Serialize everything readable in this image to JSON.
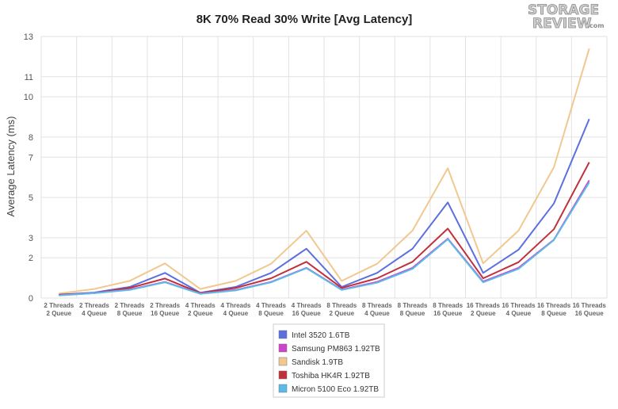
{
  "chart_data": {
    "type": "line",
    "title": "8K 70% Read 30% Write [Avg Latency]",
    "xlabel": "",
    "ylabel": "Average Latency (ms)",
    "yticks": [
      0,
      2,
      3,
      5,
      7,
      8,
      10,
      11,
      13
    ],
    "ylim": [
      0,
      13
    ],
    "grid": true,
    "legend_position": "bottom",
    "categories": [
      [
        "2 Threads",
        "2 Queue"
      ],
      [
        "2 Threads",
        "4 Queue"
      ],
      [
        "2 Threads",
        "8 Queue"
      ],
      [
        "2 Threads",
        "16 Queue"
      ],
      [
        "4 Threads",
        "2 Queue"
      ],
      [
        "4 Threads",
        "4 Queue"
      ],
      [
        "4 Threads",
        "8 Queue"
      ],
      [
        "4 Threads",
        "16 Queue"
      ],
      [
        "8 Threads",
        "2 Queue"
      ],
      [
        "8 Threads",
        "4 Queue"
      ],
      [
        "8 Threads",
        "8 Queue"
      ],
      [
        "8 Threads",
        "16 Queue"
      ],
      [
        "16 Threads",
        "2 Queue"
      ],
      [
        "16 Threads",
        "4 Queue"
      ],
      [
        "16 Threads",
        "8 Queue"
      ],
      [
        "16 Threads",
        "16 Queue"
      ]
    ],
    "series": [
      {
        "name": "Intel 3520 1.6TB",
        "color": "#5b6fe0",
        "values": [
          0.17,
          0.27,
          0.55,
          1.25,
          0.26,
          0.55,
          1.25,
          2.45,
          0.55,
          1.25,
          2.45,
          4.75,
          1.25,
          2.4,
          4.7,
          8.9
        ]
      },
      {
        "name": "Samsung PM863 1.92TB",
        "color": "#cc44cc",
        "values": [
          0.14,
          0.25,
          0.42,
          0.8,
          0.22,
          0.4,
          0.8,
          1.5,
          0.42,
          0.8,
          1.5,
          2.95,
          0.82,
          1.5,
          2.9,
          5.85
        ]
      },
      {
        "name": "Sandisk 1.9TB",
        "color": "#f0c890",
        "values": [
          0.22,
          0.45,
          0.85,
          1.72,
          0.45,
          0.85,
          1.7,
          3.35,
          0.85,
          1.7,
          3.35,
          6.45,
          1.72,
          3.35,
          6.5,
          12.4
        ]
      },
      {
        "name": "Toshiba HK4R 1.92TB",
        "color": "#c0303a",
        "values": [
          0.16,
          0.25,
          0.5,
          0.97,
          0.25,
          0.5,
          0.98,
          1.8,
          0.5,
          0.98,
          1.8,
          3.45,
          0.98,
          1.78,
          3.42,
          6.75
        ]
      },
      {
        "name": "Micron 5100 Eco 1.92TB",
        "color": "#5bbbe8",
        "values": [
          0.13,
          0.24,
          0.4,
          0.78,
          0.21,
          0.38,
          0.78,
          1.48,
          0.4,
          0.76,
          1.45,
          2.92,
          0.78,
          1.45,
          2.88,
          5.75
        ]
      }
    ]
  },
  "logo": {
    "line1": "STORAGE",
    "line2": "REVIEW",
    "suffix": ".com"
  }
}
